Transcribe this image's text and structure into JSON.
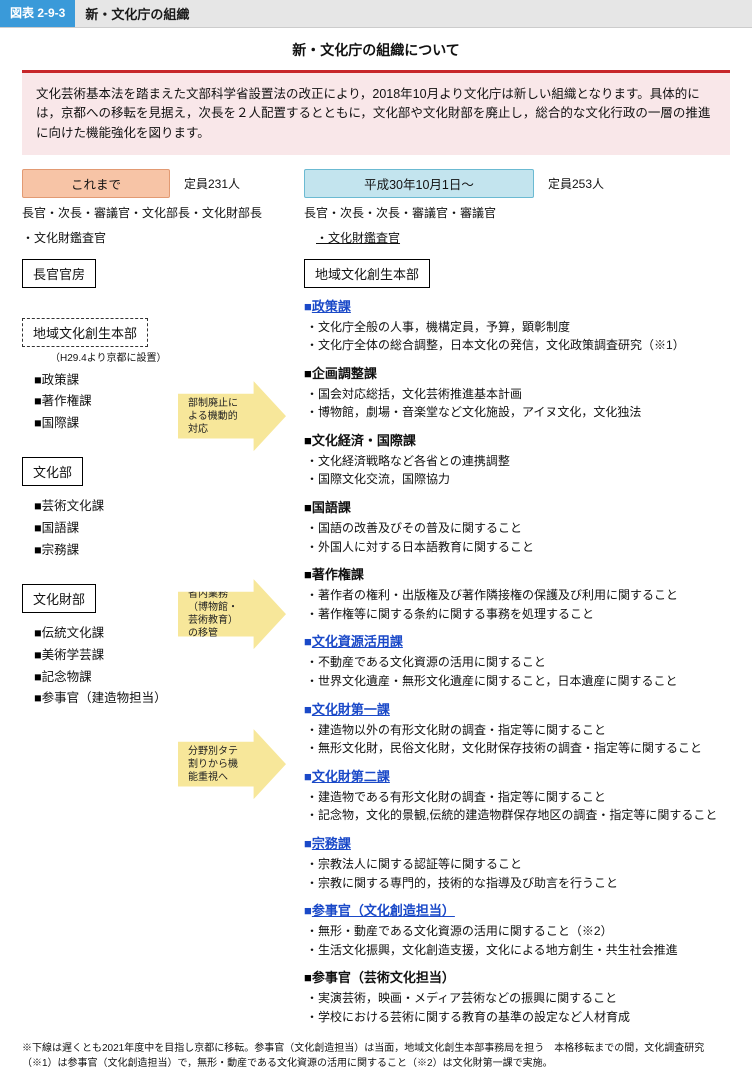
{
  "figure_tag": "図表 2-9-3",
  "figure_title_bar": "新・文化庁の組織",
  "main_title": "新・文化庁の組織について",
  "intro": "文化芸術基本法を踏まえた文部科学省設置法の改正により，2018年10月より文化庁は新しい組織となります。具体的には，京都への移転を見据え，次長を２人配置するとともに，文化部や文化財部を廃止し，総合的な文化行政の一層の推進に向けた機能強化を図ります。",
  "colors": {
    "accent_blue": "#3a9ad9",
    "red_rule": "#c7262a",
    "intro_bg": "#f9e7e9",
    "left_bar_bg": "#f7c4a6",
    "right_bar_bg": "#c3e4ee",
    "arrow_bg": "#f7e79a",
    "link_blue": "#1a49c8"
  },
  "left": {
    "bar": "これまで",
    "staff": "定員231人",
    "positions": "長官・次長・審議官・文化部長・文化財部長",
    "positions2": "・文化財鑑査官",
    "box1": "長官官房",
    "dashed": "地域文化創生本部",
    "dashed_note": "（H29.4より京都に設置）",
    "dashed_items": [
      "政策課",
      "著作権課",
      "国際課"
    ],
    "box2": "文化部",
    "box2_items": [
      "芸術文化課",
      "国語課",
      "宗務課"
    ],
    "box3": "文化財部",
    "box3_items": [
      "伝統文化課",
      "美術学芸課",
      "記念物課",
      "参事官（建造物担当）"
    ]
  },
  "arrows": {
    "a1": "部制廃止による機動的対応",
    "a2": "省内業務（博物館・芸術教育）の移管",
    "a3": "分野別タテ割りから機能重視へ"
  },
  "right": {
    "bar": "平成30年10月1日～",
    "staff": "定員253人",
    "positions": "長官・次長・次長・審議官・審議官",
    "positions2_underline": "・文化財鑑査官",
    "box1": "地域文化創生本部",
    "sections": [
      {
        "title": "政策課",
        "link": true,
        "body": [
          "文化庁全般の人事，機構定員，予算，顕彰制度",
          "文化庁全体の総合調整，日本文化の発信，文化政策調査研究（※1）"
        ]
      },
      {
        "title": "企画調整課",
        "link": false,
        "body": [
          "国会対応総括，文化芸術推進基本計画",
          "博物館，劇場・音楽堂など文化施設，アイヌ文化，文化独法"
        ]
      },
      {
        "title": "文化経済・国際課",
        "link": false,
        "body": [
          "文化経済戦略など各省との連携調整",
          "国際文化交流，国際協力"
        ]
      },
      {
        "title": "国語課",
        "link": false,
        "body": [
          "国語の改善及びその普及に関すること",
          "外国人に対する日本語教育に関すること"
        ]
      },
      {
        "title": "著作権課",
        "link": false,
        "body": [
          "著作者の権利・出版権及び著作隣接権の保護及び利用に関すること",
          "著作権等に関する条約に関する事務を処理すること"
        ]
      },
      {
        "title": "文化資源活用課",
        "link": true,
        "body": [
          "不動産である文化資源の活用に関すること",
          "世界文化遺産・無形文化遺産に関すること，日本遺産に関すること"
        ]
      },
      {
        "title": "文化財第一課",
        "link": true,
        "body": [
          "建造物以外の有形文化財の調査・指定等に関すること",
          "無形文化財，民俗文化財，文化財保存技術の調査・指定等に関すること"
        ]
      },
      {
        "title": "文化財第二課",
        "link": true,
        "body": [
          "建造物である有形文化財の調査・指定等に関すること",
          "記念物，文化的景観,伝統的建造物群保存地区の調査・指定等に関すること"
        ]
      },
      {
        "title": "宗務課",
        "link": true,
        "body": [
          "宗教法人に関する認証等に関すること",
          "宗教に関する専門的，技術的な指導及び助言を行うこと"
        ]
      },
      {
        "title": "参事官（文化創造担当）",
        "link": true,
        "body": [
          "無形・動産である文化資源の活用に関すること（※2）",
          "生活文化振興，文化創造支援，文化による地方創生・共生社会推進"
        ]
      },
      {
        "title": "参事官（芸術文化担当）",
        "link": false,
        "body": [
          "実演芸術，映画・メディア芸術などの振興に関すること",
          "学校における芸術に関する教育の基準の設定など人材育成"
        ]
      }
    ]
  },
  "footnote": "下線は遅くとも2021年度中を目指し京都に移転。参事官（文化創造担当）は当面，地域文化創生本部事務局を担う　本格移転までの間，文化調査研究（※1）は参事官（文化創造担当）で，無形・動産である文化資源の活用に関すること（※2）は文化財第一課で実施。"
}
